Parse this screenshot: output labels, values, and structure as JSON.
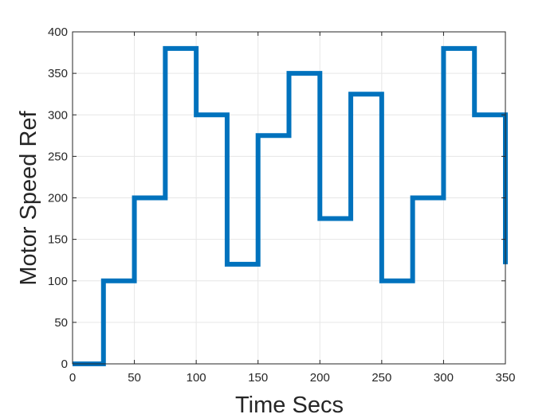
{
  "chart_data": {
    "type": "line",
    "step": true,
    "title": "",
    "xlabel": "Time Secs",
    "ylabel": "Motor Speed Ref",
    "xlim": [
      0,
      350
    ],
    "ylim": [
      0,
      400
    ],
    "xticks": [
      0,
      50,
      100,
      150,
      200,
      250,
      300,
      350
    ],
    "yticks": [
      0,
      50,
      100,
      150,
      200,
      250,
      300,
      350,
      400
    ],
    "grid": true,
    "legend": "none",
    "series": [
      {
        "color": "#0072BD",
        "x": [
          0,
          25,
          25,
          50,
          50,
          75,
          75,
          100,
          100,
          125,
          125,
          150,
          150,
          175,
          175,
          200,
          200,
          225,
          225,
          250,
          250,
          275,
          275,
          300,
          300,
          325,
          325,
          350,
          350
        ],
        "y": [
          0,
          0,
          100,
          100,
          200,
          200,
          380,
          380,
          300,
          300,
          120,
          120,
          275,
          275,
          350,
          350,
          175,
          175,
          325,
          325,
          100,
          100,
          200,
          200,
          380,
          380,
          300,
          300,
          120
        ]
      }
    ]
  },
  "colors": {
    "grid": "#e6e6e6",
    "axes": "#262626",
    "background": "#ffffff"
  }
}
